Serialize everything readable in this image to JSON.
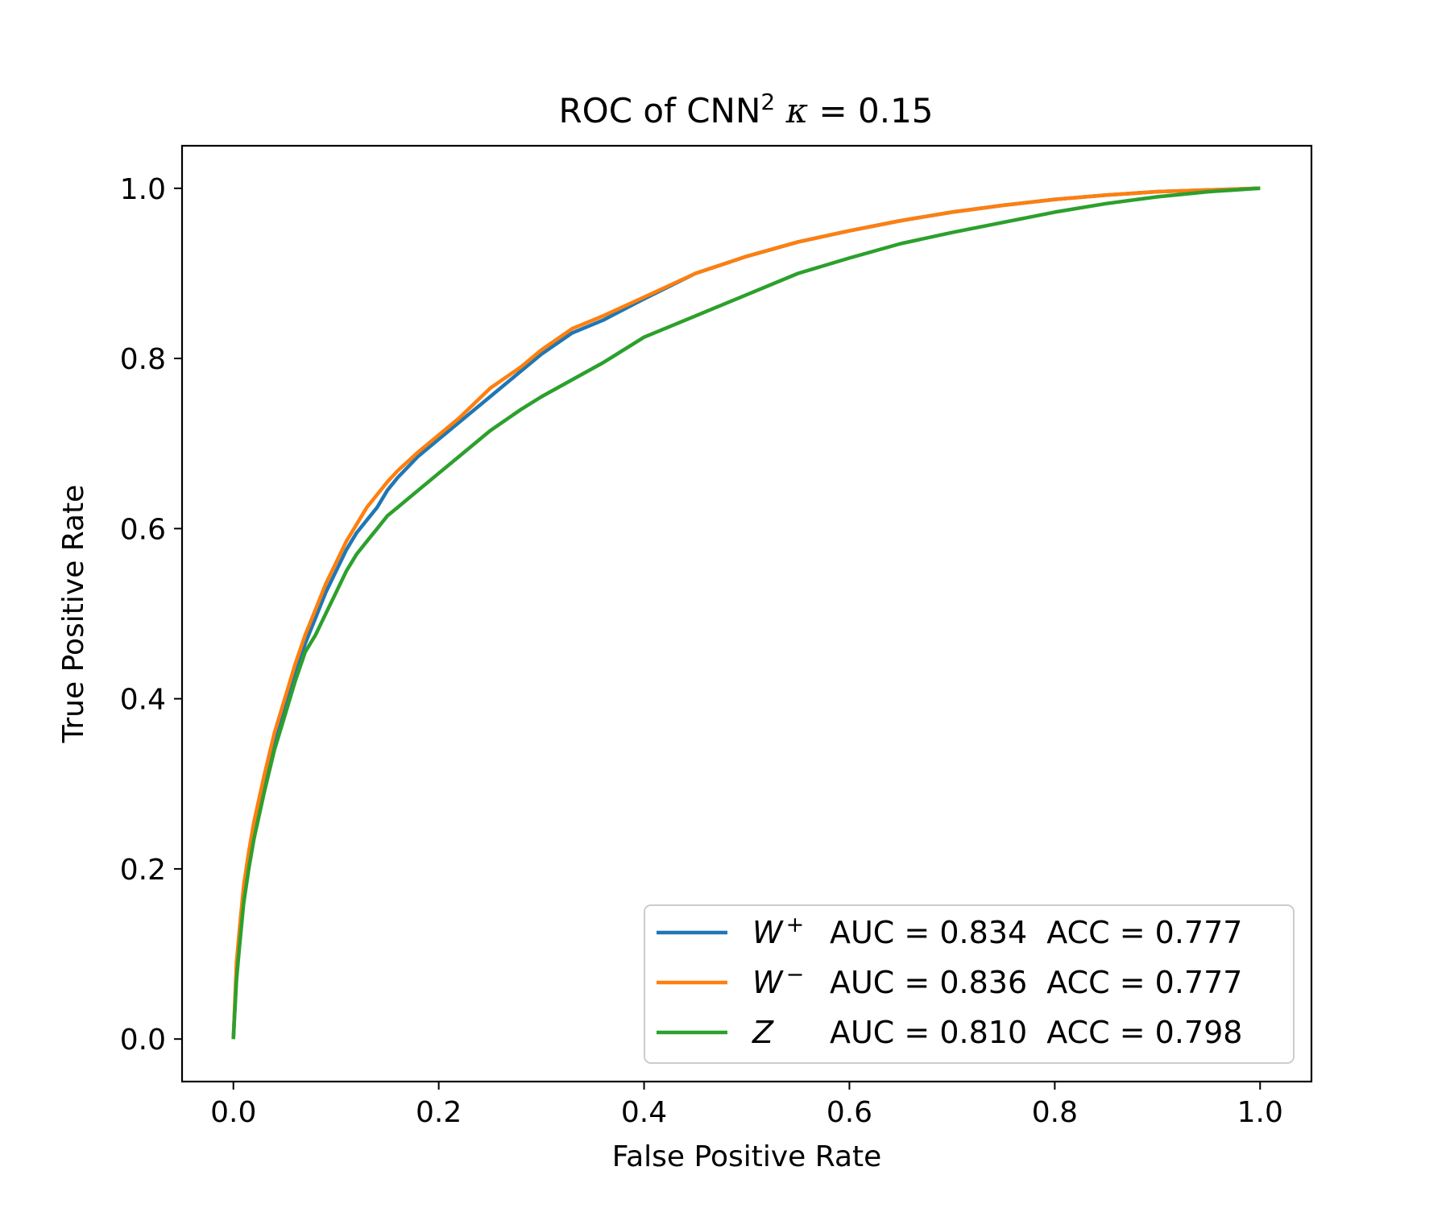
{
  "chart_data": {
    "type": "line",
    "title_main": "ROC of CNN",
    "title_sup": "2",
    "title_kappa": "κ",
    "title_eq": " = 0.15",
    "xlabel": "False Positive Rate",
    "ylabel": "True Positive Rate",
    "xlim": [
      -0.05,
      1.05
    ],
    "ylim": [
      -0.05,
      1.05
    ],
    "xticks": [
      "0.0",
      "0.2",
      "0.4",
      "0.6",
      "0.8",
      "1.0"
    ],
    "yticks": [
      "0.0",
      "0.2",
      "0.4",
      "0.6",
      "0.8",
      "1.0"
    ],
    "grid": false,
    "legend_position": "lower-right",
    "series": [
      {
        "name_base": "W",
        "name_sup": "+",
        "label_stats": "AUC = 0.834  ACC = 0.777",
        "color": "#1f77b4",
        "x": [
          0,
          0.003,
          0.006,
          0.01,
          0.015,
          0.02,
          0.03,
          0.04,
          0.05,
          0.06,
          0.07,
          0.08,
          0.09,
          0.1,
          0.11,
          0.12,
          0.13,
          0.14,
          0.15,
          0.16,
          0.18,
          0.2,
          0.22,
          0.25,
          0.28,
          0.3,
          0.33,
          0.36,
          0.4,
          0.45,
          0.5,
          0.55,
          0.6,
          0.65,
          0.7,
          0.75,
          0.8,
          0.85,
          0.9,
          0.95,
          1.0
        ],
        "y": [
          0,
          0.08,
          0.12,
          0.17,
          0.21,
          0.245,
          0.3,
          0.35,
          0.39,
          0.43,
          0.465,
          0.495,
          0.525,
          0.55,
          0.575,
          0.595,
          0.61,
          0.625,
          0.645,
          0.66,
          0.685,
          0.705,
          0.725,
          0.755,
          0.785,
          0.805,
          0.83,
          0.845,
          0.87,
          0.9,
          0.92,
          0.937,
          0.95,
          0.962,
          0.972,
          0.98,
          0.987,
          0.992,
          0.996,
          0.998,
          1.0
        ]
      },
      {
        "name_base": "W",
        "name_sup": "−",
        "label_stats": "AUC = 0.836  ACC = 0.777",
        "color": "#ff7f0e",
        "x": [
          0,
          0.003,
          0.006,
          0.01,
          0.015,
          0.02,
          0.03,
          0.04,
          0.05,
          0.06,
          0.07,
          0.08,
          0.09,
          0.1,
          0.11,
          0.12,
          0.13,
          0.14,
          0.15,
          0.16,
          0.18,
          0.2,
          0.22,
          0.25,
          0.28,
          0.3,
          0.33,
          0.36,
          0.4,
          0.45,
          0.5,
          0.55,
          0.6,
          0.65,
          0.7,
          0.75,
          0.8,
          0.85,
          0.9,
          0.95,
          1.0
        ],
        "y": [
          0,
          0.09,
          0.13,
          0.18,
          0.22,
          0.255,
          0.31,
          0.36,
          0.4,
          0.44,
          0.475,
          0.505,
          0.535,
          0.56,
          0.585,
          0.605,
          0.625,
          0.64,
          0.655,
          0.668,
          0.69,
          0.71,
          0.73,
          0.765,
          0.79,
          0.81,
          0.835,
          0.85,
          0.872,
          0.9,
          0.92,
          0.937,
          0.95,
          0.962,
          0.972,
          0.98,
          0.987,
          0.992,
          0.996,
          0.998,
          1.0
        ]
      },
      {
        "name_base": "Z",
        "name_sup": "",
        "label_stats": "AUC = 0.810  ACC = 0.798",
        "color": "#2ca02c",
        "x": [
          0,
          0.003,
          0.006,
          0.01,
          0.015,
          0.02,
          0.03,
          0.04,
          0.05,
          0.06,
          0.07,
          0.08,
          0.09,
          0.1,
          0.11,
          0.12,
          0.13,
          0.14,
          0.15,
          0.16,
          0.18,
          0.2,
          0.22,
          0.25,
          0.28,
          0.3,
          0.33,
          0.36,
          0.4,
          0.45,
          0.5,
          0.55,
          0.6,
          0.65,
          0.7,
          0.75,
          0.8,
          0.85,
          0.9,
          0.95,
          1.0
        ],
        "y": [
          0,
          0.07,
          0.11,
          0.16,
          0.2,
          0.235,
          0.29,
          0.34,
          0.38,
          0.42,
          0.455,
          0.475,
          0.5,
          0.525,
          0.55,
          0.57,
          0.585,
          0.6,
          0.615,
          0.625,
          0.645,
          0.665,
          0.685,
          0.715,
          0.74,
          0.755,
          0.775,
          0.795,
          0.825,
          0.85,
          0.875,
          0.9,
          0.918,
          0.935,
          0.948,
          0.96,
          0.972,
          0.982,
          0.99,
          0.996,
          1.0
        ]
      }
    ]
  }
}
